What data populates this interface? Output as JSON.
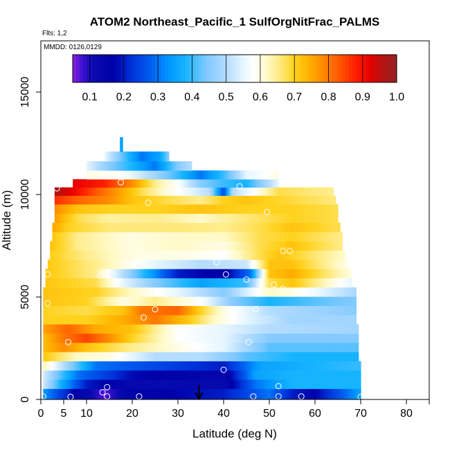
{
  "chart_data": {
    "type": "heatmap",
    "title": "ATOM2 Northeast_Pacific_1 SulfOrgNitFrac_PALMS",
    "subtitle_flights": "Flts: 1,2",
    "subtitle_dates": "MMDD: 0126,0129",
    "xlabel": "Latitude (deg N)",
    "ylabel": "Altitude (m)",
    "xlim": [
      0,
      85
    ],
    "ylim": [
      0,
      17500
    ],
    "x_ticks": [
      0,
      5,
      10,
      20,
      30,
      40,
      50,
      60,
      70,
      80
    ],
    "x_tick_labels": [
      "0",
      "5",
      "10",
      "20",
      "30",
      "40",
      "50",
      "60",
      "70",
      "80"
    ],
    "y_ticks": [
      0,
      5000,
      10000,
      15000
    ],
    "y_tick_labels": [
      "0",
      "5000",
      "10000",
      "15000"
    ],
    "colorbar": {
      "range": [
        0.05,
        1.0
      ],
      "ticks": [
        0.1,
        0.2,
        0.3,
        0.4,
        0.5,
        0.6,
        0.7,
        0.8,
        0.9,
        1.0
      ],
      "tick_labels": [
        "0.1",
        "0.2",
        "0.3",
        "0.4",
        "0.5",
        "0.6",
        "0.7",
        "0.8",
        "0.9",
        "1.0"
      ],
      "stops": [
        [
          0.05,
          "#8a1ee0"
        ],
        [
          0.08,
          "#3a10d0"
        ],
        [
          0.11,
          "#0a0ab0"
        ],
        [
          0.17,
          "#0000a8"
        ],
        [
          0.22,
          "#0030d8"
        ],
        [
          0.28,
          "#005ef0"
        ],
        [
          0.33,
          "#0096ff"
        ],
        [
          0.38,
          "#16b4ff"
        ],
        [
          0.44,
          "#7dc8ff"
        ],
        [
          0.5,
          "#b4dcff"
        ],
        [
          0.55,
          "#e6f6ff"
        ],
        [
          0.58,
          "#ffffff"
        ],
        [
          0.62,
          "#fffac8"
        ],
        [
          0.66,
          "#ffe87a"
        ],
        [
          0.7,
          "#ffd21e"
        ],
        [
          0.74,
          "#ffb400"
        ],
        [
          0.78,
          "#ff8c00"
        ],
        [
          0.83,
          "#ff5a00"
        ],
        [
          0.88,
          "#ff1e00"
        ],
        [
          0.92,
          "#e60000"
        ],
        [
          0.96,
          "#b41414"
        ],
        [
          1.0,
          "#962323"
        ]
      ]
    },
    "rows": [
      {
        "alt": 300,
        "xmin": 0.5,
        "xmax": 70,
        "pts": [
          [
            0,
            0.35
          ],
          [
            8,
            0.15
          ],
          [
            14,
            0.07
          ],
          [
            20,
            0.15
          ],
          [
            40,
            0.2
          ],
          [
            50,
            0.3
          ],
          [
            55,
            0.2
          ],
          [
            60,
            0.17
          ],
          [
            70,
            0.35
          ]
        ]
      },
      {
        "alt": 750,
        "xmin": 0.5,
        "xmax": 70,
        "pts": [
          [
            0,
            0.55
          ],
          [
            5,
            0.35
          ],
          [
            10,
            0.2
          ],
          [
            20,
            0.12
          ],
          [
            40,
            0.12
          ],
          [
            47,
            0.3
          ],
          [
            55,
            0.38
          ],
          [
            70,
            0.38
          ]
        ]
      },
      {
        "alt": 1200,
        "xmin": 0.5,
        "xmax": 70,
        "pts": [
          [
            0,
            0.55
          ],
          [
            8,
            0.3
          ],
          [
            20,
            0.18
          ],
          [
            40,
            0.13
          ],
          [
            47,
            0.35
          ],
          [
            55,
            0.38
          ],
          [
            70,
            0.38
          ]
        ]
      },
      {
        "alt": 1650,
        "xmin": 0.5,
        "xmax": 70,
        "pts": [
          [
            0,
            0.65
          ],
          [
            5,
            0.5
          ],
          [
            12,
            0.3
          ],
          [
            25,
            0.25
          ],
          [
            40,
            0.2
          ],
          [
            48,
            0.35
          ],
          [
            60,
            0.38
          ],
          [
            70,
            0.4
          ]
        ]
      },
      {
        "alt": 2100,
        "xmin": 0.5,
        "xmax": 69.5,
        "pts": [
          [
            0,
            0.72
          ],
          [
            8,
            0.62
          ],
          [
            15,
            0.6
          ],
          [
            25,
            0.5
          ],
          [
            35,
            0.5
          ],
          [
            45,
            0.42
          ],
          [
            55,
            0.38
          ],
          [
            70,
            0.38
          ]
        ]
      },
      {
        "alt": 2550,
        "xmin": 0.5,
        "xmax": 69.5,
        "pts": [
          [
            0,
            0.72
          ],
          [
            5,
            0.78
          ],
          [
            10,
            0.72
          ],
          [
            20,
            0.65
          ],
          [
            30,
            0.6
          ],
          [
            40,
            0.55
          ],
          [
            50,
            0.42
          ],
          [
            70,
            0.42
          ]
        ]
      },
      {
        "alt": 3000,
        "xmin": 0.5,
        "xmax": 69.5,
        "pts": [
          [
            0,
            0.72
          ],
          [
            5,
            0.8
          ],
          [
            10,
            0.85
          ],
          [
            15,
            0.78
          ],
          [
            20,
            0.7
          ],
          [
            30,
            0.58
          ],
          [
            40,
            0.55
          ],
          [
            50,
            0.45
          ],
          [
            70,
            0.45
          ]
        ]
      },
      {
        "alt": 3450,
        "xmin": 0.5,
        "xmax": 69.5,
        "pts": [
          [
            0,
            0.75
          ],
          [
            6,
            0.82
          ],
          [
            12,
            0.75
          ],
          [
            20,
            0.72
          ],
          [
            30,
            0.58
          ],
          [
            40,
            0.55
          ],
          [
            50,
            0.5
          ],
          [
            70,
            0.48
          ]
        ]
      },
      {
        "alt": 3900,
        "xmin": 0.5,
        "xmax": 69,
        "pts": [
          [
            0,
            0.7
          ],
          [
            10,
            0.7
          ],
          [
            18,
            0.75
          ],
          [
            25,
            0.8
          ],
          [
            32,
            0.72
          ],
          [
            38,
            0.62
          ],
          [
            45,
            0.55
          ],
          [
            55,
            0.48
          ],
          [
            70,
            0.48
          ]
        ]
      },
      {
        "alt": 4350,
        "xmin": 0.5,
        "xmax": 69,
        "pts": [
          [
            0,
            0.7
          ],
          [
            10,
            0.68
          ],
          [
            18,
            0.72
          ],
          [
            22,
            0.8
          ],
          [
            30,
            0.82
          ],
          [
            35,
            0.7
          ],
          [
            40,
            0.6
          ],
          [
            50,
            0.5
          ],
          [
            70,
            0.45
          ]
        ]
      },
      {
        "alt": 4800,
        "xmin": 0.5,
        "xmax": 69,
        "pts": [
          [
            0,
            0.72
          ],
          [
            10,
            0.7
          ],
          [
            18,
            0.6
          ],
          [
            25,
            0.65
          ],
          [
            35,
            0.58
          ],
          [
            42,
            0.45
          ],
          [
            50,
            0.38
          ],
          [
            60,
            0.42
          ],
          [
            70,
            0.45
          ]
        ]
      },
      {
        "alt": 5250,
        "xmin": 0.5,
        "xmax": 69,
        "pts": [
          [
            0,
            0.72
          ],
          [
            12,
            0.7
          ],
          [
            20,
            0.62
          ],
          [
            30,
            0.55
          ],
          [
            40,
            0.45
          ],
          [
            50,
            0.62
          ],
          [
            55,
            0.6
          ],
          [
            70,
            0.48
          ]
        ]
      },
      {
        "alt": 5700,
        "xmin": 1,
        "xmax": 68,
        "pts": [
          [
            0,
            0.72
          ],
          [
            12,
            0.68
          ],
          [
            18,
            0.55
          ],
          [
            25,
            0.45
          ],
          [
            35,
            0.35
          ],
          [
            45,
            0.4
          ],
          [
            50,
            0.68
          ],
          [
            55,
            0.72
          ],
          [
            68,
            0.55
          ]
        ]
      },
      {
        "alt": 6150,
        "xmin": 1,
        "xmax": 68,
        "pts": [
          [
            0,
            0.72
          ],
          [
            12,
            0.65
          ],
          [
            20,
            0.45
          ],
          [
            30,
            0.2
          ],
          [
            40,
            0.15
          ],
          [
            46,
            0.3
          ],
          [
            50,
            0.72
          ],
          [
            55,
            0.75
          ],
          [
            68,
            0.6
          ]
        ]
      },
      {
        "alt": 6600,
        "xmin": 1.5,
        "xmax": 67,
        "pts": [
          [
            0,
            0.72
          ],
          [
            12,
            0.65
          ],
          [
            25,
            0.55
          ],
          [
            35,
            0.5
          ],
          [
            45,
            0.52
          ],
          [
            50,
            0.72
          ],
          [
            55,
            0.72
          ],
          [
            67,
            0.6
          ]
        ]
      },
      {
        "alt": 7050,
        "xmin": 2,
        "xmax": 66.5,
        "pts": [
          [
            0,
            0.72
          ],
          [
            10,
            0.65
          ],
          [
            20,
            0.6
          ],
          [
            30,
            0.6
          ],
          [
            40,
            0.58
          ],
          [
            48,
            0.68
          ],
          [
            52,
            0.72
          ],
          [
            66,
            0.62
          ]
        ]
      },
      {
        "alt": 7500,
        "xmin": 2,
        "xmax": 66,
        "pts": [
          [
            0,
            0.75
          ],
          [
            8,
            0.65
          ],
          [
            20,
            0.6
          ],
          [
            30,
            0.62
          ],
          [
            40,
            0.6
          ],
          [
            48,
            0.68
          ],
          [
            55,
            0.72
          ],
          [
            66,
            0.65
          ]
        ]
      },
      {
        "alt": 7950,
        "xmin": 2.5,
        "xmax": 66,
        "pts": [
          [
            0,
            0.75
          ],
          [
            8,
            0.65
          ],
          [
            20,
            0.6
          ],
          [
            30,
            0.62
          ],
          [
            40,
            0.62
          ],
          [
            48,
            0.68
          ],
          [
            55,
            0.7
          ],
          [
            66,
            0.65
          ]
        ]
      },
      {
        "alt": 8400,
        "xmin": 2.5,
        "xmax": 65.5,
        "pts": [
          [
            0,
            0.8
          ],
          [
            6,
            0.7
          ],
          [
            15,
            0.66
          ],
          [
            30,
            0.66
          ],
          [
            40,
            0.65
          ],
          [
            48,
            0.68
          ],
          [
            55,
            0.72
          ],
          [
            65,
            0.68
          ]
        ]
      },
      {
        "alt": 8850,
        "xmin": 3,
        "xmax": 65,
        "pts": [
          [
            0,
            0.82
          ],
          [
            8,
            0.68
          ],
          [
            15,
            0.64
          ],
          [
            25,
            0.65
          ],
          [
            35,
            0.62
          ],
          [
            45,
            0.66
          ],
          [
            55,
            0.7
          ],
          [
            65,
            0.68
          ]
        ]
      },
      {
        "alt": 9300,
        "xmin": 3,
        "xmax": 65,
        "pts": [
          [
            0,
            0.82
          ],
          [
            8,
            0.72
          ],
          [
            15,
            0.7
          ],
          [
            25,
            0.7
          ],
          [
            35,
            0.72
          ],
          [
            45,
            0.7
          ],
          [
            55,
            0.7
          ],
          [
            65,
            0.68
          ]
        ]
      },
      {
        "alt": 9750,
        "xmin": 3,
        "xmax": 64.5,
        "pts": [
          [
            0,
            0.9
          ],
          [
            8,
            0.82
          ],
          [
            15,
            0.78
          ],
          [
            20,
            0.72
          ],
          [
            28,
            0.68
          ],
          [
            35,
            0.65
          ],
          [
            40,
            0.7
          ],
          [
            45,
            0.72
          ],
          [
            50,
            0.7
          ],
          [
            64,
            0.66
          ]
        ]
      },
      {
        "alt": 10150,
        "xmin": 3,
        "xmax": 64,
        "pts": [
          [
            3,
            0.97
          ],
          [
            8,
            0.9
          ],
          [
            13,
            0.82
          ],
          [
            18,
            0.75
          ],
          [
            22,
            0.68
          ],
          [
            28,
            0.6
          ],
          [
            33,
            0.55
          ],
          [
            37,
            0.5
          ],
          [
            40,
            0.25
          ],
          [
            42,
            0.5
          ],
          [
            45,
            0.55
          ],
          [
            52,
            0.68
          ],
          [
            64,
            0.65
          ]
        ]
      },
      {
        "alt": 10550,
        "xmin": 7,
        "xmax": 52,
        "pts": [
          [
            7,
            0.92
          ],
          [
            14,
            0.88
          ],
          [
            20,
            0.78
          ],
          [
            25,
            0.65
          ],
          [
            30,
            0.58
          ],
          [
            35,
            0.45
          ],
          [
            40,
            0.4
          ],
          [
            45,
            0.38
          ],
          [
            52,
            0.55
          ]
        ]
      },
      {
        "alt": 10950,
        "xmin": 10,
        "xmax": 52,
        "pts": [
          [
            10,
            0.6
          ],
          [
            18,
            0.58
          ],
          [
            25,
            0.48
          ],
          [
            30,
            0.4
          ],
          [
            35,
            0.3
          ],
          [
            40,
            0.4
          ],
          [
            45,
            0.55
          ],
          [
            52,
            0.6
          ]
        ]
      },
      {
        "alt": 11400,
        "xmin": 10,
        "xmax": 33,
        "pts": [
          [
            10,
            0.55
          ],
          [
            15,
            0.45
          ],
          [
            20,
            0.38
          ],
          [
            25,
            0.3
          ],
          [
            30,
            0.45
          ],
          [
            33,
            0.5
          ]
        ]
      },
      {
        "alt": 11850,
        "xmin": 14,
        "xmax": 28,
        "pts": [
          [
            14,
            0.55
          ],
          [
            18,
            0.42
          ],
          [
            22,
            0.3
          ],
          [
            26,
            0.35
          ],
          [
            28,
            0.45
          ]
        ]
      },
      {
        "alt": 12350,
        "xmin": 17.3,
        "xmax": 17.9,
        "pts": [
          [
            17.3,
            0.35
          ],
          [
            17.9,
            0.35
          ]
        ]
      }
    ],
    "markers": [
      [
        0.5,
        150
      ],
      [
        6.5,
        130
      ],
      [
        14.5,
        150
      ],
      [
        21.5,
        150
      ],
      [
        46.5,
        150
      ],
      [
        52,
        150
      ],
      [
        57,
        150
      ],
      [
        70,
        130
      ],
      [
        14.5,
        600
      ],
      [
        13.5,
        350
      ],
      [
        40,
        1450
      ],
      [
        52,
        650
      ],
      [
        6,
        2800
      ],
      [
        45.5,
        2800
      ],
      [
        25,
        4400
      ],
      [
        22.5,
        4000
      ],
      [
        47,
        4400
      ],
      [
        1.5,
        4700
      ],
      [
        1.5,
        6100
      ],
      [
        13,
        6050
      ],
      [
        38.5,
        6700
      ],
      [
        40.5,
        6100
      ],
      [
        45,
        5850
      ],
      [
        51,
        5600
      ],
      [
        53,
        5400
      ],
      [
        53,
        7250
      ],
      [
        54.5,
        7250
      ],
      [
        49.5,
        9150
      ],
      [
        23.5,
        9600
      ],
      [
        3.5,
        10300
      ],
      [
        17.5,
        10600
      ],
      [
        43.5,
        10400
      ]
    ],
    "arrow_lat": 34.6
  }
}
